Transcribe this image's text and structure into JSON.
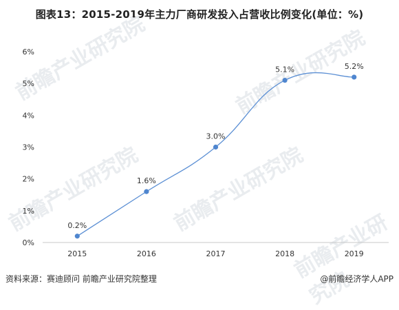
{
  "title": "图表13：2015-2019年主力厂商研发投入占营收比例变化(单位：%)",
  "footer": {
    "source": "资料来源：赛迪顾问 前瞻产业研究院整理",
    "credit": "@前瞻经济学人APP"
  },
  "watermark": "前瞻产业研究院",
  "colors": {
    "line": "#5b8fd4",
    "marker": "#4f86cf",
    "axis": "#c8c8c8",
    "text": "#333333"
  },
  "chart_data": {
    "type": "line",
    "categories": [
      "2015",
      "2016",
      "2017",
      "2018",
      "2019"
    ],
    "values": [
      0.2,
      1.6,
      3.0,
      5.1,
      5.2
    ],
    "data_labels": [
      "0.2%",
      "1.6%",
      "3.0%",
      "5.1%",
      "5.2%"
    ],
    "y_ticks": [
      "0%",
      "1%",
      "2%",
      "3%",
      "4%",
      "5%",
      "6%"
    ],
    "ylim": [
      0,
      6
    ],
    "grid": false,
    "smooth": true
  }
}
